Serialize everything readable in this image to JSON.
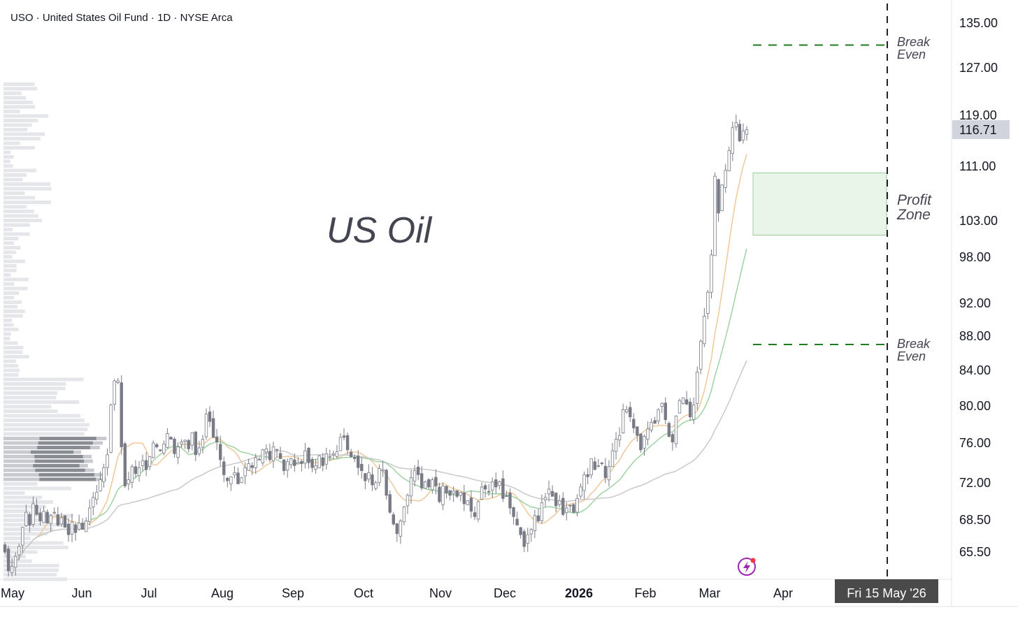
{
  "header": {
    "symbol_line": "USO · United States Oil Fund · 1D · NYSE Arca"
  },
  "overlay_text": "US Oil",
  "last_price": "116.71",
  "crosshair_date": "Fri 15 May '26",
  "annotations": {
    "break_even_upper": [
      "Break",
      "Even"
    ],
    "break_even_lower": [
      "Break",
      "Even"
    ],
    "profit_zone": [
      "Profit",
      "Zone"
    ]
  },
  "colors": {
    "candle": "#787b86",
    "candle_up_fill": "#ffffff",
    "ma_fast": "#f0c89a",
    "ma_mid": "#9fd3a3",
    "ma_slow": "#c9c9c9",
    "break_even_line": "#1e7d1e",
    "profit_zone_fill": "#e9f5e9",
    "profit_zone_border": "#9ccb9c",
    "last_price_bg": "#d1d4dc",
    "crosshair_bg": "#4a4a4a",
    "lightning_icon": "#9c27b0"
  },
  "chart_data": {
    "type": "candlestick",
    "title": "USO · United States Oil Fund · 1D · NYSE Arca",
    "y_axis": {
      "ticks": [
        135.0,
        127.0,
        119.0,
        111.0,
        103.0,
        98.0,
        92.0,
        88.0,
        84.0,
        80.0,
        76.0,
        72.0,
        68.5,
        65.5
      ],
      "tick_labels": [
        "135.00",
        "127.00",
        "119.00",
        "111.00",
        "103.00",
        "98.00",
        "92.00",
        "88.00",
        "84.00",
        "80.00",
        "76.00",
        "72.00",
        "68.50",
        "65.50"
      ],
      "scale": "log"
    },
    "x_axis": {
      "tick_labels": [
        "May",
        "Jun",
        "Jul",
        "Aug",
        "Sep",
        "Oct",
        "Nov",
        "Dec",
        "2026",
        "Feb",
        "Mar",
        "Apr"
      ],
      "bold_labels": [
        "2026"
      ]
    },
    "levels": {
      "break_even_upper": 131,
      "break_even_lower": 87,
      "profit_zone": [
        101,
        110
      ]
    },
    "closes": [
      65.5,
      63.8,
      64.2,
      65.1,
      66.0,
      67.8,
      69.2,
      68.0,
      70.0,
      69.0,
      68.4,
      69.3,
      68.2,
      68.9,
      69.2,
      68.0,
      68.7,
      67.8,
      67.1,
      68.3,
      67.3,
      68.2,
      67.6,
      68.4,
      69.6,
      70.6,
      71.1,
      72.3,
      73.5,
      74.8,
      80.1,
      82.8,
      82.8,
      75.6,
      71.7,
      72.3,
      73.6,
      72.9,
      73.5,
      74.2,
      73.3,
      74.6,
      76.0,
      75.6,
      75.2,
      75.9,
      77.0,
      76.4,
      74.9,
      75.6,
      76.1,
      76.3,
      75.4,
      77.1,
      74.8,
      75.5,
      76.4,
      79.1,
      78.3,
      76.6,
      76.1,
      74.3,
      72.8,
      72.2,
      72.6,
      73.0,
      71.9,
      72.5,
      73.5,
      73.9,
      73.5,
      74.5,
      74.3,
      75.3,
      75.4,
      74.3,
      75.6,
      75.3,
      74.4,
      73.2,
      74.1,
      74.4,
      73.7,
      74.0,
      73.9,
      75.2,
      74.0,
      73.5,
      73.7,
      74.7,
      73.7,
      74.9,
      74.6,
      74.9,
      75.1,
      76.6,
      76.6,
      75.3,
      74.6,
      74.4,
      73.5,
      73.2,
      72.2,
      73.0,
      71.8,
      72.0,
      73.4,
      73.3,
      70.8,
      69.2,
      68.1,
      67.2,
      68.4,
      69.7,
      70.8,
      72.5,
      73.2,
      72.8,
      71.5,
      72.1,
      71.6,
      72.3,
      71.7,
      70.2,
      71.7,
      71.0,
      70.8,
      71.2,
      70.7,
      71.1,
      70.0,
      70.3,
      69.3,
      68.8,
      70.2,
      71.6,
      71.4,
      71.1,
      72.1,
      71.6,
      72.1,
      70.5,
      70.7,
      69.6,
      68.8,
      68.0,
      67.1,
      66.0,
      67.1,
      67.6,
      68.9,
      68.4,
      70.1,
      70.6,
      71.4,
      70.7,
      69.8,
      70.3,
      69.0,
      69.6,
      69.8,
      69.2,
      70.5,
      71.6,
      72.8,
      72.6,
      74.4,
      73.3,
      73.7,
      73.9,
      72.5,
      73.6,
      75.2,
      76.4,
      76.8,
      79.6,
      79.6,
      78.8,
      77.6,
      76.8,
      75.3,
      76.7,
      77.5,
      78.2,
      78.1,
      79.6,
      80.3,
      78.5,
      76.7,
      76.1,
      78.9,
      80.6,
      80.9,
      80.2,
      78.8,
      80.1,
      83.8,
      87.4,
      90.4,
      93.4,
      98.3,
      109.5,
      104.1,
      108.2,
      110.4,
      113.4,
      117.0,
      117.8,
      114.9,
      116.5,
      116.7
    ],
    "series": [
      {
        "name": "",
        "kind": "ma",
        "values": []
      },
      {
        "name": "",
        "kind": "ma",
        "values": []
      },
      {
        "name": "",
        "kind": "ma",
        "values": []
      }
    ]
  }
}
